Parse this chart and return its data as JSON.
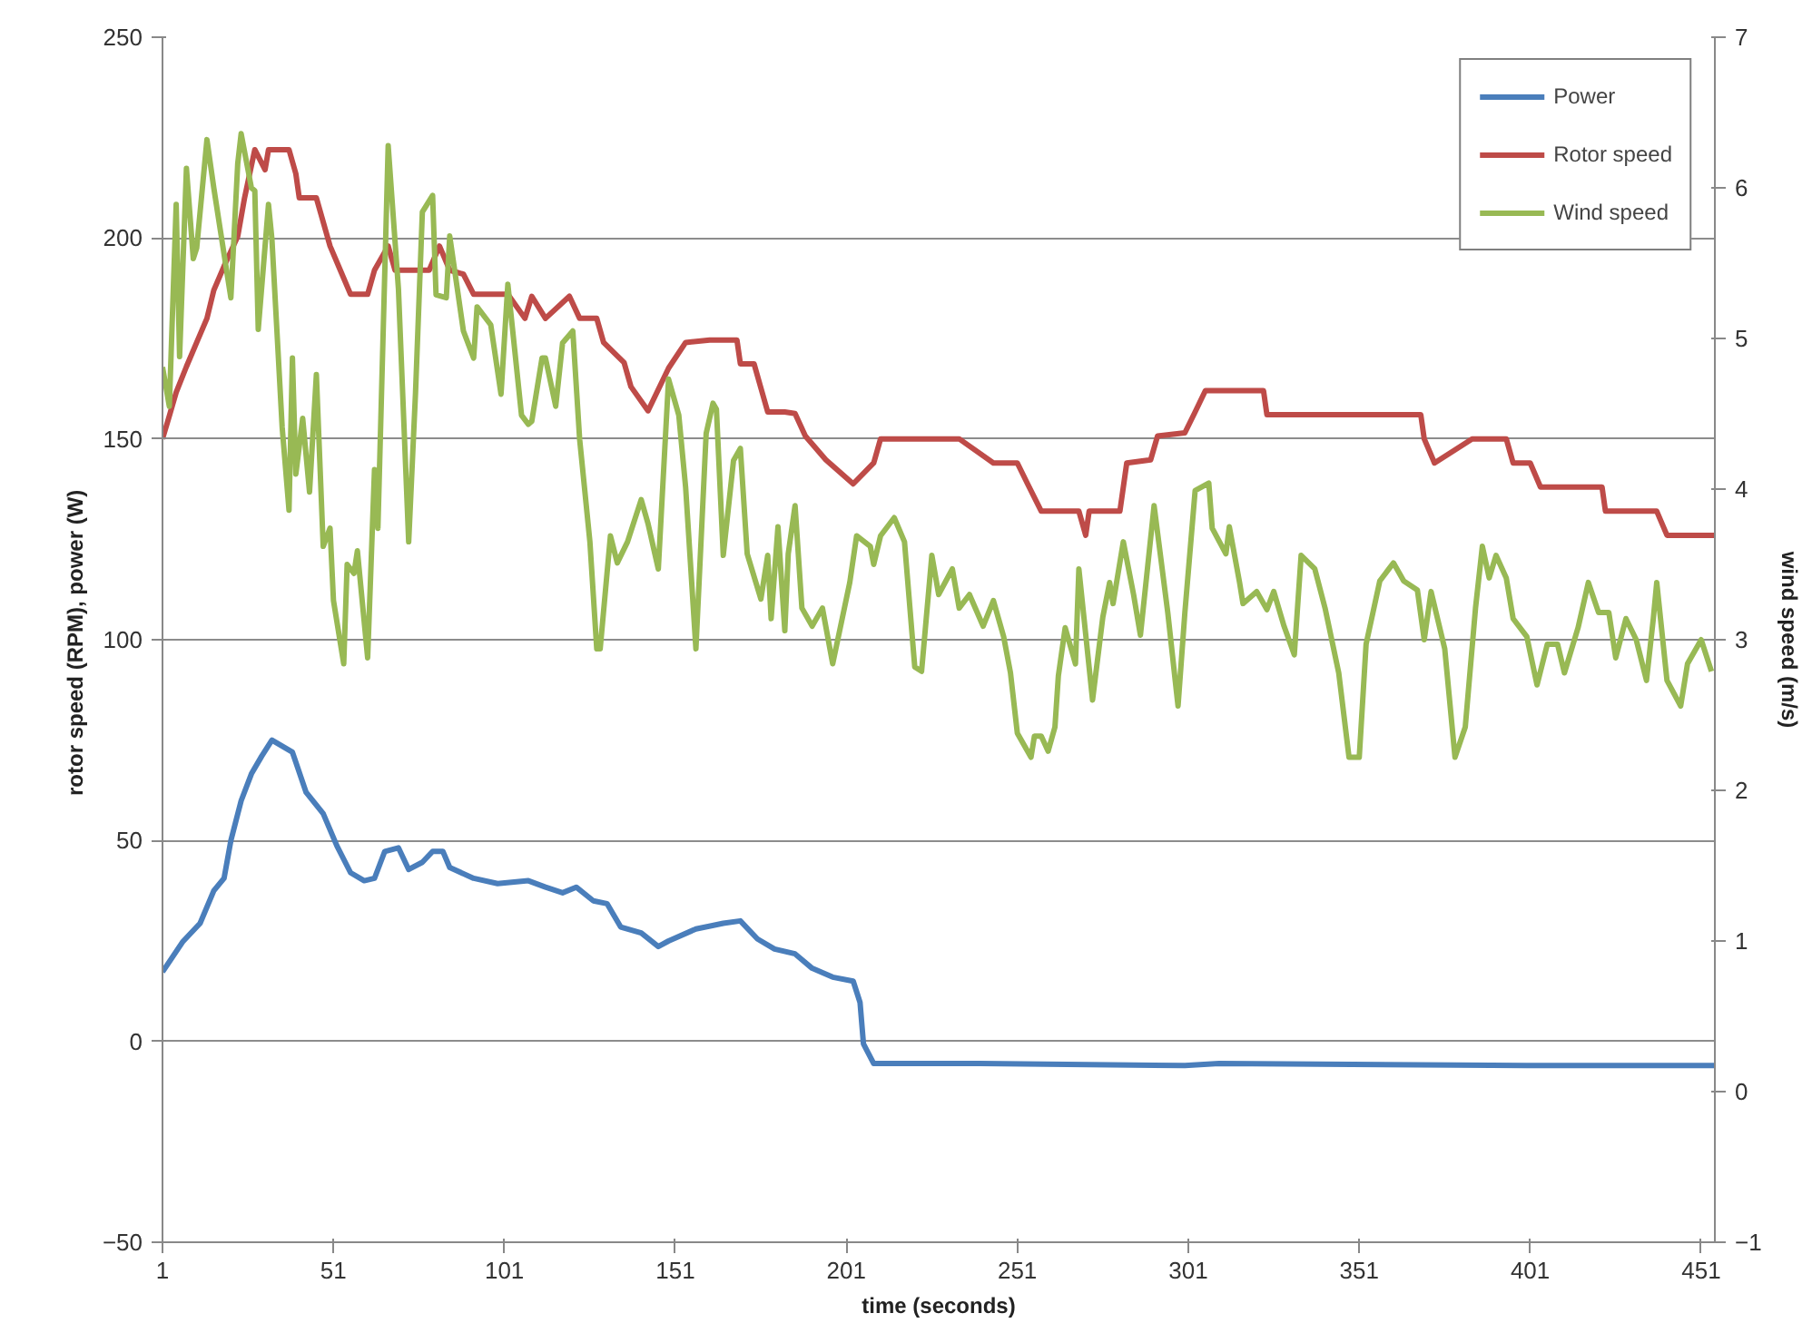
{
  "chart_data": {
    "type": "line",
    "xlabel": "time (seconds)",
    "ylabel": "rotor speed (RPM),  power (W)",
    "y2label": "wind speed (m/s)",
    "xlim": [
      1,
      455
    ],
    "xticks": [
      1,
      51,
      101,
      151,
      201,
      251,
      301,
      351,
      401,
      451
    ],
    "ylim": [
      -50,
      250
    ],
    "yticks": [
      -50,
      0,
      50,
      100,
      150,
      200,
      250
    ],
    "y2lim": [
      -1,
      7
    ],
    "y2ticks": [
      -1,
      0,
      1,
      2,
      3,
      4,
      5,
      6,
      7
    ],
    "grid": "y",
    "legend": "top right",
    "marker": "none",
    "line_style": "solid",
    "series": [
      {
        "name": "Power",
        "color": "#4a7ebb",
        "x": [
          1,
          7,
          12,
          16,
          19,
          21,
          24,
          27,
          30,
          33,
          39,
          43,
          48,
          52,
          56,
          60,
          63,
          66,
          70,
          73,
          77,
          80,
          83,
          85,
          92,
          99,
          108,
          113,
          118,
          122,
          127,
          131,
          135,
          141,
          146,
          149,
          157,
          165,
          170,
          175,
          180,
          186,
          191,
          197,
          203,
          205,
          206,
          209,
          240,
          300,
          310,
          400,
          455
        ],
        "values": [
          17.3,
          24.9,
          29.4,
          37.5,
          40.6,
          50,
          59.9,
          66.6,
          71,
          75,
          72,
          62,
          56.7,
          48.7,
          42,
          40,
          40.6,
          47.3,
          48.2,
          42.8,
          44.6,
          47.3,
          47.3,
          43.3,
          40.6,
          39.3,
          40,
          38.4,
          37,
          38.4,
          35,
          34.3,
          28.5,
          27,
          23.6,
          25,
          28,
          29.4,
          30,
          25.5,
          23,
          21.8,
          18.2,
          16,
          15,
          9.7,
          -0.6,
          -5.5,
          -5.5,
          -6,
          -5.5,
          -6,
          -6
        ]
      },
      {
        "name": "Rotor speed",
        "color": "#be4b48",
        "x": [
          1,
          3,
          5,
          8,
          11,
          14,
          16,
          19,
          23,
          25,
          28,
          31,
          32,
          38,
          40,
          41,
          46,
          48,
          50,
          53,
          56,
          61,
          63,
          67,
          69,
          79,
          82,
          85,
          89,
          92,
          102,
          107,
          109,
          113,
          120,
          123,
          128,
          130,
          136,
          138,
          143,
          149,
          154,
          161,
          169,
          170,
          174,
          176,
          178,
          183,
          186,
          189,
          195,
          203,
          209,
          211,
          223,
          234,
          244,
          251,
          254,
          258,
          269,
          271,
          272,
          281,
          283,
          290,
          292,
          300,
          303,
          306,
          323,
          324,
          340,
          369,
          370,
          373,
          384,
          394,
          396,
          401,
          404,
          422,
          423,
          438,
          441,
          455
        ],
        "values": [
          150,
          155.7,
          161.6,
          168,
          174,
          180,
          187,
          193,
          200.4,
          210,
          222,
          217,
          222,
          222,
          216,
          210,
          210,
          204,
          198,
          192,
          186,
          186,
          192,
          198,
          192,
          192,
          198,
          192,
          191,
          186,
          186,
          180,
          185.5,
          180,
          185.5,
          180,
          180,
          174,
          169,
          163,
          157,
          167.6,
          174,
          174.6,
          174.6,
          168.7,
          168.7,
          162.7,
          156.7,
          156.7,
          156.3,
          150.7,
          144.8,
          138.8,
          144,
          150,
          150,
          150,
          144,
          144,
          138.8,
          132,
          132,
          126,
          132,
          132,
          144,
          144.8,
          150.7,
          151.5,
          156.7,
          162,
          162,
          156,
          156,
          156,
          150,
          144,
          150,
          150,
          144,
          144,
          138,
          138,
          132,
          132,
          126,
          126
        ]
      },
      {
        "name": "Wind speed",
        "color": "#98b954",
        "axis": "y2",
        "x": [
          1,
          3,
          5,
          6,
          8,
          10,
          11,
          14,
          16,
          19,
          21,
          23,
          24,
          27,
          28,
          29,
          32,
          33,
          36,
          38,
          39,
          40,
          42,
          44,
          46,
          48,
          50,
          51,
          54,
          55,
          57,
          58,
          61,
          63,
          64,
          67,
          70,
          73,
          75,
          77,
          80,
          81,
          84,
          85,
          89,
          92,
          93,
          97,
          100,
          102,
          106,
          108,
          109,
          112,
          113,
          116,
          118,
          121,
          123,
          126,
          128,
          129,
          132,
          134,
          137,
          141,
          143,
          146,
          149,
          152,
          154,
          157,
          160,
          162,
          163,
          165,
          168,
          170,
          172,
          176,
          178,
          179,
          181,
          183,
          184,
          186,
          188,
          191,
          194,
          197,
          202,
          204,
          208,
          209,
          211,
          215,
          218,
          221,
          223,
          226,
          228,
          232,
          234,
          237,
          241,
          244,
          247,
          249,
          251,
          255,
          256,
          258,
          260,
          262,
          263,
          265,
          268,
          269,
          273,
          276,
          278,
          279,
          282,
          285,
          287,
          291,
          295,
          298,
          300,
          303,
          307,
          308,
          312,
          313,
          316,
          317,
          321,
          324,
          326,
          329,
          332,
          334,
          338,
          341,
          345,
          348,
          351,
          353,
          357,
          361,
          364,
          368,
          370,
          372,
          376,
          379,
          382,
          385,
          387,
          389,
          391,
          394,
          396,
          400,
          403,
          406,
          409,
          411,
          415,
          418,
          421,
          424,
          426,
          429,
          432,
          435,
          437,
          438,
          441,
          445,
          447,
          451,
          454
        ],
        "values": [
          4.81,
          4.55,
          5.89,
          4.88,
          6.13,
          5.53,
          5.6,
          6.32,
          6.0,
          5.56,
          5.27,
          6.16,
          6.36,
          6.0,
          5.98,
          5.06,
          5.89,
          5.66,
          4.41,
          3.86,
          4.87,
          4.1,
          4.47,
          3.98,
          4.76,
          3.62,
          3.74,
          3.26,
          2.84,
          3.5,
          3.44,
          3.59,
          2.88,
          4.13,
          3.74,
          6.28,
          5.33,
          3.65,
          4.64,
          5.84,
          5.95,
          5.29,
          5.27,
          5.68,
          5.05,
          4.87,
          5.21,
          5.09,
          4.63,
          5.36,
          4.49,
          4.43,
          4.45,
          4.87,
          4.87,
          4.55,
          4.97,
          5.05,
          4.33,
          3.65,
          2.94,
          2.94,
          3.69,
          3.51,
          3.65,
          3.93,
          3.77,
          3.47,
          4.73,
          4.49,
          4.01,
          2.94,
          4.37,
          4.57,
          4.53,
          3.56,
          4.19,
          4.27,
          3.57,
          3.27,
          3.56,
          3.14,
          3.75,
          3.06,
          3.57,
          3.89,
          3.21,
          3.09,
          3.21,
          2.84,
          3.38,
          3.69,
          3.62,
          3.5,
          3.69,
          3.81,
          3.65,
          2.82,
          2.79,
          3.56,
          3.3,
          3.47,
          3.21,
          3.3,
          3.09,
          3.26,
          3.02,
          2.78,
          2.38,
          2.22,
          2.36,
          2.36,
          2.26,
          2.42,
          2.76,
          3.08,
          2.84,
          3.47,
          2.6,
          3.15,
          3.38,
          3.24,
          3.65,
          3.3,
          3.03,
          3.89,
          3.18,
          2.56,
          3.18,
          3.99,
          4.04,
          3.74,
          3.57,
          3.75,
          3.38,
          3.24,
          3.32,
          3.2,
          3.32,
          3.09,
          2.9,
          3.56,
          3.47,
          3.21,
          2.78,
          2.22,
          2.22,
          2.97,
          3.39,
          3.51,
          3.39,
          3.33,
          3.0,
          3.32,
          2.94,
          2.22,
          2.42,
          3.21,
          3.62,
          3.41,
          3.56,
          3.41,
          3.14,
          3.02,
          2.7,
          2.97,
          2.97,
          2.78,
          3.08,
          3.38,
          3.18,
          3.18,
          2.88,
          3.14,
          3.0,
          2.73,
          3.14,
          3.38,
          2.73,
          2.56,
          2.84,
          3.0,
          2.79
        ]
      }
    ]
  }
}
